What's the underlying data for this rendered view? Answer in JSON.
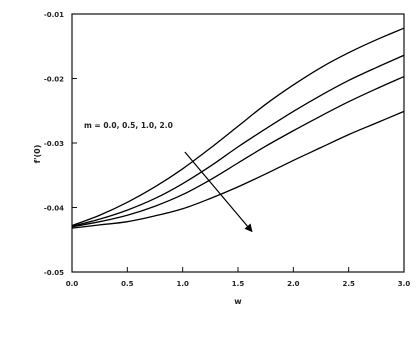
{
  "chart_data": {
    "type": "line",
    "xlabel": "w",
    "ylabel": "f'(0)",
    "xlim": [
      0.0,
      3.0
    ],
    "ylim": [
      -0.05,
      -0.01
    ],
    "x_ticks": [
      0.0,
      0.5,
      1.0,
      1.5,
      2.0,
      2.5,
      3.0
    ],
    "x_tick_labels": [
      "0.0",
      "0.5",
      "1.0",
      "1.5",
      "2.0",
      "2.5",
      "3.0"
    ],
    "y_ticks": [
      -0.01,
      -0.02,
      -0.03,
      -0.04,
      -0.05
    ],
    "y_tick_labels": [
      "-0.01",
      "-0.02",
      "-0.03",
      "-0.04",
      "-0.05"
    ],
    "grid": false,
    "annotation": {
      "text": "m = 0.0, 0.5, 1.0, 2.0",
      "arrow": {
        "from": [
          1.02,
          -0.0314
        ],
        "to": [
          1.62,
          -0.0436
        ]
      }
    },
    "series": [
      {
        "x": [
          0.0,
          0.25,
          0.5,
          0.75,
          1.0,
          1.25,
          1.5,
          1.75,
          2.0,
          2.25,
          2.5,
          2.75,
          3.0
        ],
        "y": [
          -0.0428,
          -0.0412,
          -0.0392,
          -0.0368,
          -0.034,
          -0.0308,
          -0.0274,
          -0.024,
          -0.021,
          -0.0183,
          -0.016,
          -0.014,
          -0.0122
        ]
      },
      {
        "x": [
          0.0,
          0.25,
          0.5,
          0.75,
          1.0,
          1.25,
          1.5,
          1.75,
          2.0,
          2.25,
          2.5,
          2.75,
          3.0
        ],
        "y": [
          -0.0429,
          -0.0418,
          -0.0404,
          -0.0386,
          -0.0363,
          -0.0336,
          -0.0306,
          -0.0278,
          -0.0251,
          -0.0226,
          -0.0203,
          -0.0183,
          -0.0164
        ]
      },
      {
        "x": [
          0.0,
          0.25,
          0.5,
          0.75,
          1.0,
          1.25,
          1.5,
          1.75,
          2.0,
          2.25,
          2.5,
          2.75,
          3.0
        ],
        "y": [
          -0.043,
          -0.0422,
          -0.0412,
          -0.0398,
          -0.038,
          -0.0357,
          -0.0331,
          -0.0305,
          -0.0281,
          -0.0258,
          -0.0236,
          -0.0216,
          -0.0197
        ]
      },
      {
        "x": [
          0.0,
          0.25,
          0.5,
          0.75,
          1.0,
          1.25,
          1.5,
          1.75,
          2.0,
          2.25,
          2.5,
          2.75,
          3.0
        ],
        "y": [
          -0.0432,
          -0.0427,
          -0.0422,
          -0.0413,
          -0.0402,
          -0.0386,
          -0.0368,
          -0.0348,
          -0.0327,
          -0.0307,
          -0.0287,
          -0.0269,
          -0.0251
        ]
      }
    ]
  },
  "colors": {
    "line": "#000000",
    "axis": "#111111"
  }
}
